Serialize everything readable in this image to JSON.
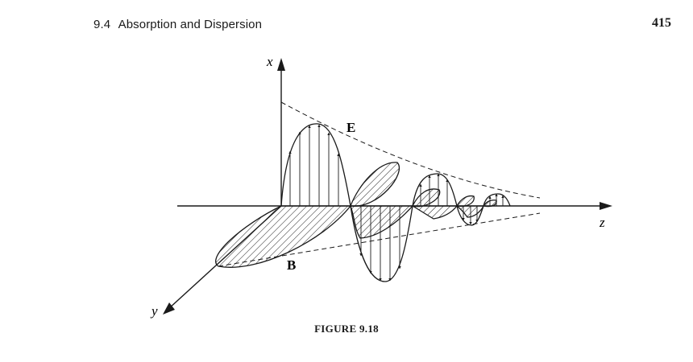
{
  "header": {
    "section_number": "9.4",
    "section_title": "Absorption and Dispersion",
    "page_number": "415"
  },
  "figure": {
    "axis_labels": {
      "x": "x",
      "y": "y",
      "z": "z"
    },
    "field_labels": {
      "E": "E",
      "B": "B"
    },
    "caption": "FIGURE 9.18"
  }
}
